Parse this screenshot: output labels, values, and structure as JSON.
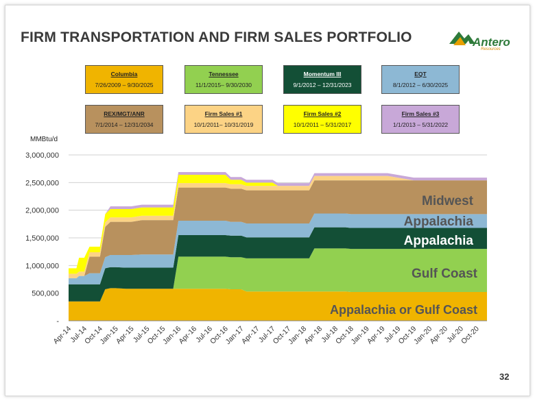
{
  "slide": {
    "title": "FIRM TRANSPORTATION AND FIRM SALES PORTFOLIO",
    "page_number": "32",
    "logo": {
      "name": "Antero",
      "subtitle": "Resources",
      "colors": {
        "green": "#2e7a3a",
        "orange": "#e8a000"
      }
    }
  },
  "legend": [
    {
      "name": "Columbia",
      "dates": "7/26/2009 – 9/30/2025",
      "color": "#f0b400",
      "text_color": "#222222"
    },
    {
      "name": "Tennessee",
      "dates": "11/1/2015– 9/30/2030",
      "color": "#92d050",
      "text_color": "#222222"
    },
    {
      "name": "Momentum III",
      "dates": "9/1/2012 – 12/31/2023",
      "color": "#134f36",
      "text_color": "#ffffff"
    },
    {
      "name": "EQT",
      "dates": "8/1/2012 – 6/30/2025",
      "color": "#8db8d4",
      "text_color": "#222222"
    },
    {
      "name": "REX/MGT/ANR",
      "dates": "7/1/2014 – 12/31/2034",
      "color": "#b8915e",
      "text_color": "#222222"
    },
    {
      "name": "Firm Sales #1",
      "dates": "10/1/2011– 10/31/2019",
      "color": "#fcd385",
      "text_color": "#222222"
    },
    {
      "name": "Firm Sales #2",
      "dates": "10/1/2011 – 5/31/2017",
      "color": "#ffff00",
      "text_color": "#222222"
    },
    {
      "name": "Firm Sales #3",
      "dates": "1/1/2013 – 5/31/2022",
      "color": "#c8a8d8",
      "text_color": "#222222"
    }
  ],
  "chart_data": {
    "type": "area",
    "stacked": true,
    "ylabel": "MMBtu/d",
    "ylim": [
      0,
      3000000
    ],
    "yticks": [
      0,
      500000,
      1000000,
      1500000,
      2000000,
      2500000,
      3000000
    ],
    "ytick_labels": [
      "-",
      "500,000",
      "1,000,000",
      "1,500,000",
      "2,000,000",
      "2,500,000",
      "3,000,000"
    ],
    "grid": true,
    "xlim": [
      0,
      80
    ],
    "x": [
      0,
      1.5,
      2,
      3,
      4,
      6,
      7,
      8,
      9,
      11,
      12,
      14,
      17,
      18,
      20,
      21,
      30,
      31,
      33,
      34,
      39,
      40,
      46,
      47,
      53,
      54,
      60,
      61,
      66,
      67,
      80
    ],
    "x_unit": "months since Apr-14",
    "xtick_positions": [
      0,
      3,
      6,
      9,
      12,
      15,
      18,
      21,
      24,
      27,
      30,
      33,
      36,
      39,
      42,
      45,
      48,
      51,
      54,
      57,
      60,
      63,
      66,
      69,
      72,
      75,
      78
    ],
    "xtick_labels": [
      "Apr-14",
      "Jul-14",
      "Oct-14",
      "Jan-15",
      "Apr-15",
      "Jul-15",
      "Oct-15",
      "Jan-16",
      "Apr-16",
      "Jul-16",
      "Oct-16",
      "Jan-17",
      "Apr-17",
      "Jul-17",
      "Oct-17",
      "Jan-18",
      "Apr-18",
      "Jul-18",
      "Oct-18",
      "Jan-19",
      "Apr-19",
      "Jul-19",
      "Oct-19",
      "Jan-20",
      "Apr-20",
      "Jul-20",
      "Oct-20"
    ],
    "series": [
      {
        "name": "Columbia",
        "values": [
          350000,
          350000,
          350000,
          350000,
          350000,
          350000,
          570000,
          590000,
          590000,
          580000,
          580000,
          580000,
          580000,
          580000,
          580000,
          580000,
          580000,
          570000,
          570000,
          530000,
          530000,
          530000,
          530000,
          530000,
          530000,
          520000,
          520000,
          520000,
          520000,
          520000,
          520000
        ]
      },
      {
        "name": "Tennessee",
        "values": [
          0,
          0,
          0,
          0,
          0,
          0,
          0,
          0,
          0,
          0,
          0,
          0,
          0,
          0,
          0,
          580000,
          580000,
          580000,
          580000,
          600000,
          600000,
          600000,
          600000,
          780000,
          780000,
          780000,
          780000,
          780000,
          780000,
          780000,
          780000
        ]
      },
      {
        "name": "Momentum III",
        "values": [
          310000,
          310000,
          310000,
          310000,
          310000,
          310000,
          380000,
          380000,
          380000,
          380000,
          380000,
          380000,
          380000,
          380000,
          380000,
          390000,
          390000,
          390000,
          390000,
          380000,
          380000,
          380000,
          380000,
          380000,
          380000,
          380000,
          380000,
          380000,
          380000,
          380000,
          380000
        ]
      },
      {
        "name": "EQT",
        "values": [
          110000,
          110000,
          150000,
          150000,
          200000,
          200000,
          200000,
          220000,
          220000,
          230000,
          230000,
          240000,
          240000,
          240000,
          240000,
          260000,
          260000,
          250000,
          250000,
          250000,
          250000,
          250000,
          250000,
          250000,
          250000,
          250000,
          250000,
          250000,
          250000,
          250000,
          250000
        ]
      },
      {
        "name": "REX/MGT/ANR",
        "values": [
          0,
          0,
          0,
          0,
          300000,
          300000,
          550000,
          600000,
          600000,
          600000,
          600000,
          620000,
          620000,
          620000,
          620000,
          600000,
          600000,
          600000,
          600000,
          600000,
          600000,
          600000,
          600000,
          600000,
          600000,
          610000,
          610000,
          610000,
          610000,
          610000,
          610000
        ]
      },
      {
        "name": "Firm Sales #1",
        "values": [
          80000,
          80000,
          80000,
          80000,
          80000,
          80000,
          80000,
          80000,
          80000,
          80000,
          80000,
          80000,
          80000,
          80000,
          80000,
          80000,
          80000,
          80000,
          80000,
          80000,
          80000,
          80000,
          80000,
          80000,
          80000,
          80000,
          80000,
          80000,
          0,
          0,
          0
        ]
      },
      {
        "name": "Firm Sales #2",
        "values": [
          100000,
          100000,
          250000,
          250000,
          100000,
          100000,
          150000,
          150000,
          150000,
          150000,
          150000,
          150000,
          150000,
          150000,
          150000,
          150000,
          150000,
          80000,
          80000,
          60000,
          60000,
          0,
          0,
          0,
          0,
          0,
          0,
          0,
          0,
          0,
          0
        ]
      },
      {
        "name": "Firm Sales #3",
        "values": [
          0,
          0,
          0,
          0,
          0,
          0,
          0,
          50000,
          50000,
          50000,
          50000,
          50000,
          50000,
          50000,
          50000,
          50000,
          50000,
          50000,
          50000,
          50000,
          50000,
          50000,
          50000,
          50000,
          50000,
          50000,
          50000,
          50000,
          50000,
          50000,
          50000
        ]
      }
    ],
    "annotations": [
      {
        "text": "Midwest",
        "color": "#555555"
      },
      {
        "text": "Appalachia",
        "color": "#555555"
      },
      {
        "text": "Appalachia",
        "color": "#ffffff"
      },
      {
        "text": "Gulf Coast",
        "color": "#555555"
      },
      {
        "text": "Appalachia or Gulf Coast",
        "color": "#555555"
      }
    ]
  }
}
